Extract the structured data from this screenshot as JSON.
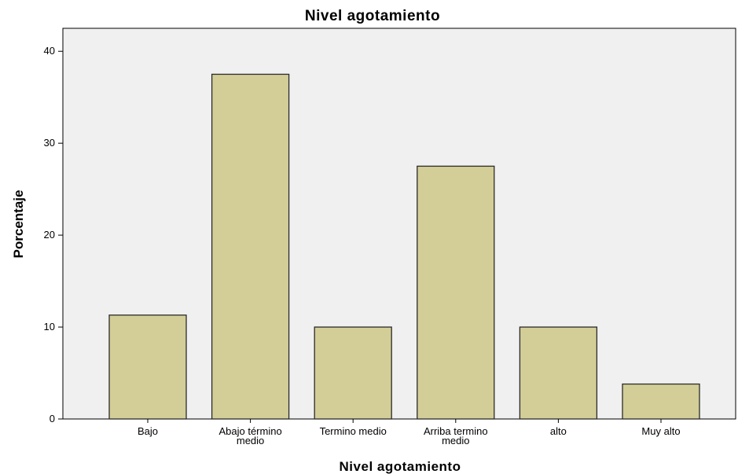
{
  "chart_data": {
    "type": "bar",
    "title": "Nivel  agotamiento",
    "xlabel": "Nivel  agotamiento",
    "ylabel": "Porcentaje",
    "categories": [
      [
        "Bajo"
      ],
      [
        "Abajo término",
        "medio"
      ],
      [
        "Termino medio"
      ],
      [
        "Arriba termino",
        "medio"
      ],
      [
        "alto"
      ],
      [
        "Muy alto"
      ]
    ],
    "values": [
      11.3,
      37.5,
      10.0,
      27.5,
      10.0,
      3.8
    ],
    "ylim": [
      0,
      42.5
    ],
    "yticks": [
      0,
      10,
      20,
      30,
      40
    ],
    "grid": false,
    "colors": {
      "bar_fill": "#d3ce97",
      "bar_stroke": "#2b2b2b",
      "plot_background": "#f0f0f0",
      "plot_border": "#000000",
      "axis": "#000000"
    }
  }
}
